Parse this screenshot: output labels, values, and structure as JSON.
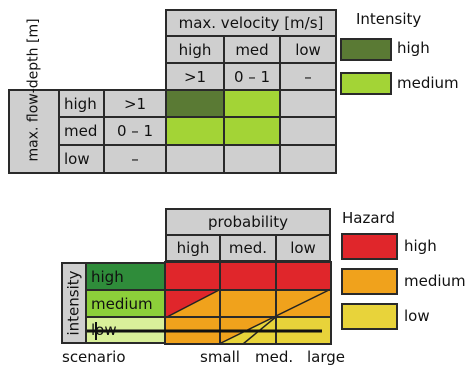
{
  "top": {
    "velocity_header": "max. velocity [m/s]",
    "velocity_cols": [
      "high",
      "med",
      "low"
    ],
    "velocity_values": [
      ">1",
      "0 – 1",
      "–"
    ],
    "depth_header": "max. flow-depth [m]",
    "depth_rows": [
      "high",
      "med",
      "low"
    ],
    "depth_values": [
      ">1",
      "0 – 1",
      "–"
    ],
    "legend_title": "Intensity",
    "legend": [
      {
        "label": "high",
        "color": "#5a7a34"
      },
      {
        "label": "medium",
        "color": "#a3d436"
      }
    ],
    "matrix": [
      [
        "high",
        "medium",
        "none"
      ],
      [
        "medium",
        "medium",
        "none"
      ],
      [
        "none",
        "none",
        "none"
      ]
    ]
  },
  "bottom": {
    "probability_header": "probability",
    "probability_cols": [
      "high",
      "med.",
      "low"
    ],
    "intensity_header": "intensity",
    "intensity_rows": [
      "high",
      "medium",
      "low"
    ],
    "scenario_label": "scenario",
    "scenario_ticks": [
      "small",
      "med.",
      "large"
    ],
    "legend_title": "Hazard",
    "legend": [
      {
        "label": "high",
        "color": "#e0262b"
      },
      {
        "label": "medium",
        "color": "#f0a21c"
      },
      {
        "label": "low",
        "color": "#e8d33a"
      }
    ],
    "colors": {
      "int_high": "#2f8c3a",
      "int_medium": "#8ccf3a",
      "int_low": "#d9f09a"
    }
  }
}
